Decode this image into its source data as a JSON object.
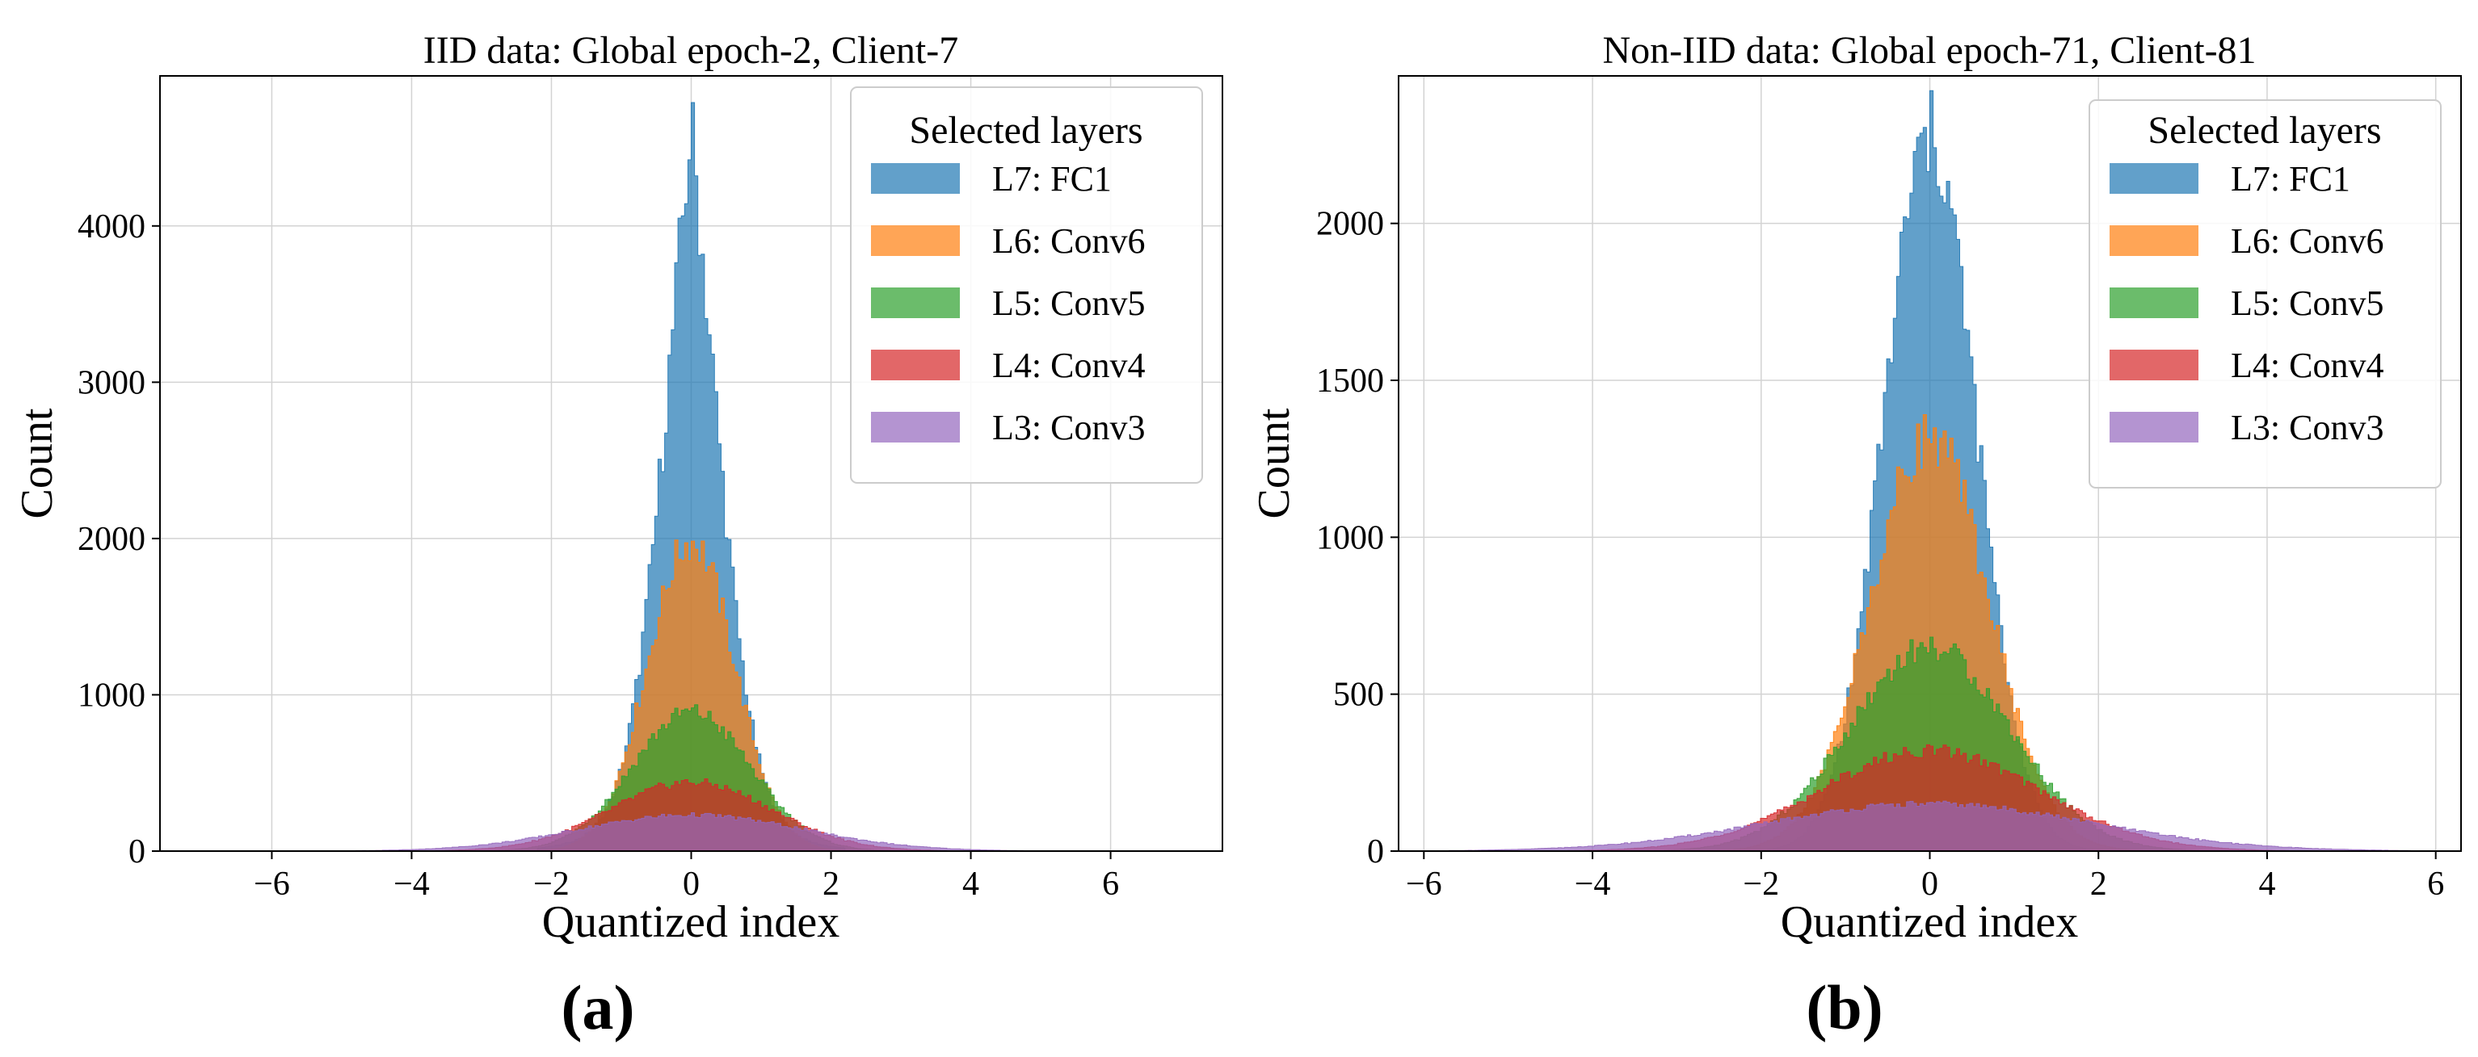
{
  "chart_data": [
    {
      "type": "histogram",
      "title": "IID data: Global epoch-2, Client-7",
      "xlabel": "Quantized index",
      "ylabel": "Count",
      "xlim": [
        -7.6,
        7.6
      ],
      "ylim": [
        0,
        4960
      ],
      "xticks": [
        -6,
        -4,
        -2,
        0,
        2,
        4,
        6
      ],
      "yticks": [
        0,
        1000,
        2000,
        3000,
        4000
      ],
      "grid": true,
      "legend": {
        "title": "Selected layers",
        "placement": "top-right"
      },
      "panel_label": "(a)",
      "series": [
        {
          "name": "L7: FC1",
          "color": "#1f77b4",
          "peak": 4650,
          "sigma": 0.46,
          "xmin": -2.2,
          "xmax": 2.2,
          "shape": "laplace"
        },
        {
          "name": "L6: Conv6",
          "color": "#ff7f0e",
          "peak": 1980,
          "sigma": 0.62,
          "xmin": -2.6,
          "xmax": 2.6,
          "shape": "gauss"
        },
        {
          "name": "L5: Conv5",
          "color": "#2ca02c",
          "peak": 890,
          "sigma": 0.85,
          "xmin": -3.0,
          "xmax": 3.0,
          "shape": "gauss"
        },
        {
          "name": "L4: Conv4",
          "color": "#d62728",
          "peak": 440,
          "sigma": 1.15,
          "xmin": -4.0,
          "xmax": 4.0,
          "shape": "gauss"
        },
        {
          "name": "L3: Conv3",
          "color": "#9467bd",
          "peak": 230,
          "sigma": 1.6,
          "xmin": -6.0,
          "xmax": 6.0,
          "shape": "gauss"
        }
      ]
    },
    {
      "type": "histogram",
      "title": "Non-IID data: Global epoch-71, Client-81",
      "xlabel": "Quantized index",
      "ylabel": "Count",
      "xlim": [
        -6.3,
        6.3
      ],
      "ylim": [
        0,
        2470
      ],
      "xticks": [
        -6,
        -4,
        -2,
        0,
        2,
        4,
        6
      ],
      "yticks": [
        0,
        500,
        1000,
        1500,
        2000
      ],
      "grid": true,
      "legend": {
        "title": "Selected layers",
        "placement": "top-right"
      },
      "panel_label": "(b)",
      "series": [
        {
          "name": "L7: FC1",
          "color": "#1f77b4",
          "peak": 2270,
          "sigma": 0.55,
          "xmin": -2.5,
          "xmax": 2.5,
          "shape": "gauss"
        },
        {
          "name": "L6: Conv6",
          "color": "#ff7f0e",
          "peak": 1320,
          "sigma": 0.7,
          "xmin": -2.8,
          "xmax": 2.8,
          "shape": "gauss"
        },
        {
          "name": "L5: Conv5",
          "color": "#2ca02c",
          "peak": 650,
          "sigma": 0.95,
          "xmin": -3.5,
          "xmax": 3.5,
          "shape": "gauss"
        },
        {
          "name": "L4: Conv4",
          "color": "#d62728",
          "peak": 320,
          "sigma": 1.3,
          "xmin": -4.5,
          "xmax": 4.5,
          "shape": "gauss"
        },
        {
          "name": "L3: Conv3",
          "color": "#9467bd",
          "peak": 150,
          "sigma": 1.9,
          "xmin": -5.7,
          "xmax": 5.7,
          "shape": "gauss"
        }
      ]
    }
  ]
}
